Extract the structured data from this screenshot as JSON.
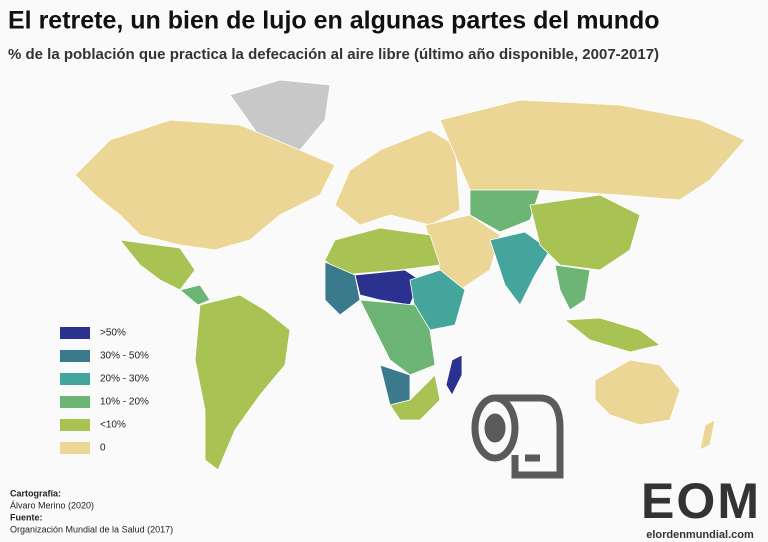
{
  "header": {
    "title": "El retrete, un bien de lujo en algunas partes del mundo",
    "subtitle": "% de la población que practica la defecación al aire libre (último año disponible, 2007-2017)"
  },
  "legend": {
    "items": [
      {
        "label": ">50%",
        "color": "#2b318f"
      },
      {
        "label": "30% - 50%",
        "color": "#3a7a8c"
      },
      {
        "label": "20% - 30%",
        "color": "#43a59b"
      },
      {
        "label": "10% - 20%",
        "color": "#6db574"
      },
      {
        "label": "<10%",
        "color": "#a8c254"
      },
      {
        "label": "0",
        "color": "#ecd696"
      }
    ]
  },
  "credits": {
    "cartography_label": "Cartografía:",
    "cartography": "Álvaro Merino (2020)",
    "source_label": "Fuente:",
    "source": "Organización Mundial de la Salud (2017)"
  },
  "logo": {
    "text": "EOM",
    "url": "elordenmundial.com"
  }
}
